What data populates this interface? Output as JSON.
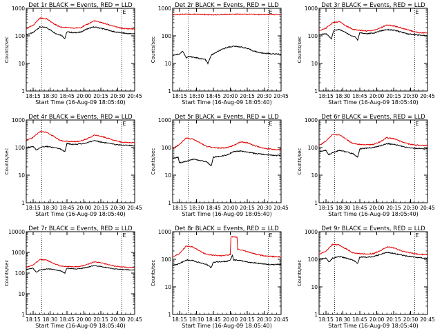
{
  "colors": {
    "events": "#000000",
    "lld": "#e00000",
    "axis": "#000000"
  },
  "chart_data": [
    {
      "type": "line",
      "title": "Det 1r BLACK = Events, RED = LLD",
      "xlabel": "Start Time (16-Aug-09 18:05:40)",
      "ylabel": "Counts/sec",
      "x_ticks": [
        "18:15",
        "18:30",
        "18:45",
        "20:00",
        "20:15",
        "20:30",
        "20:45"
      ],
      "y_ticks": [
        "1",
        "10",
        "100",
        "1000"
      ],
      "ylim": [
        1,
        1000
      ],
      "y_scale": "log",
      "x_range_minutes": [
        0,
        160
      ],
      "vlines": [
        23,
        141
      ],
      "marker": "E",
      "series": [
        {
          "color": "black",
          "x": [
            0,
            10,
            20,
            30,
            38,
            44,
            52,
            57,
            60,
            70,
            80,
            90,
            100,
            110,
            120,
            130,
            140,
            150,
            160
          ],
          "y": [
            110,
            130,
            210,
            200,
            150,
            120,
            105,
            80,
            140,
            130,
            135,
            180,
            210,
            190,
            165,
            140,
            130,
            120,
            120
          ]
        },
        {
          "color": "red",
          "x": [
            0,
            10,
            20,
            30,
            40,
            50,
            60,
            70,
            80,
            90,
            100,
            110,
            120,
            130,
            140,
            150,
            160
          ],
          "y": [
            180,
            240,
            440,
            420,
            280,
            210,
            200,
            190,
            200,
            260,
            350,
            310,
            260,
            220,
            190,
            180,
            180
          ]
        }
      ]
    },
    {
      "type": "line",
      "title": "Det 2r BLACK = Events, RED = LLD",
      "xlabel": "Start Time (16-Aug-09 18:05:40)",
      "ylabel": "Counts/sec",
      "x_ticks": [
        "18:15",
        "18:30",
        "18:45",
        "20:00",
        "20:15",
        "20:30",
        "20:45"
      ],
      "y_ticks": [
        "1",
        "10",
        "100",
        "1000"
      ],
      "ylim": [
        1,
        1000
      ],
      "y_scale": "log",
      "x_range_minutes": [
        0,
        160
      ],
      "vlines": [
        23,
        141
      ],
      "marker": "E",
      "series": [
        {
          "color": "black",
          "x": [
            0,
            10,
            15,
            20,
            25,
            30,
            40,
            48,
            52,
            57,
            60,
            70,
            80,
            90,
            100,
            110,
            120,
            130,
            140,
            150,
            160
          ],
          "y": [
            20,
            22,
            28,
            16,
            18,
            17,
            15,
            14,
            10,
            20,
            22,
            30,
            38,
            42,
            40,
            35,
            28,
            24,
            23,
            22,
            22
          ]
        },
        {
          "color": "red",
          "x": [
            0,
            20,
            40,
            60,
            80,
            100,
            120,
            140,
            160
          ],
          "y": [
            580,
            620,
            600,
            580,
            600,
            620,
            600,
            590,
            590
          ]
        }
      ]
    },
    {
      "type": "line",
      "title": "Det 3r BLACK = Events, RED = LLD",
      "xlabel": "Start Time (16-Aug-09 18:05:40)",
      "ylabel": "Counts/sec",
      "x_ticks": [
        "18:15",
        "18:30",
        "18:45",
        "20:00",
        "20:15",
        "20:30",
        "20:45"
      ],
      "y_ticks": [
        "1",
        "10",
        "100",
        "1000"
      ],
      "ylim": [
        1,
        1000
      ],
      "y_scale": "log",
      "x_range_minutes": [
        0,
        160
      ],
      "vlines": [
        23,
        141
      ],
      "marker": "E",
      "series": [
        {
          "color": "black",
          "x": [
            0,
            10,
            18,
            22,
            30,
            40,
            47,
            53,
            57,
            60,
            70,
            80,
            90,
            100,
            110,
            120,
            130,
            140,
            150,
            160
          ],
          "y": [
            110,
            120,
            80,
            160,
            170,
            130,
            100,
            95,
            70,
            130,
            120,
            125,
            150,
            170,
            160,
            140,
            120,
            110,
            105,
            100
          ]
        },
        {
          "color": "red",
          "x": [
            0,
            10,
            20,
            30,
            40,
            50,
            60,
            70,
            80,
            90,
            100,
            110,
            120,
            130,
            140,
            150,
            160
          ],
          "y": [
            150,
            190,
            300,
            330,
            230,
            170,
            160,
            150,
            160,
            190,
            250,
            230,
            200,
            170,
            140,
            130,
            125
          ]
        }
      ]
    },
    {
      "type": "line",
      "title": "Det 4r BLACK = Events, RED = LLD",
      "xlabel": "Start Time (16-Aug-09 18:05:40)",
      "ylabel": "Counts/sec",
      "x_ticks": [
        "18:15",
        "18:30",
        "18:45",
        "20:00",
        "20:15",
        "20:30",
        "20:45"
      ],
      "y_ticks": [
        "1",
        "10",
        "100",
        "1000"
      ],
      "ylim": [
        1,
        1000
      ],
      "y_scale": "log",
      "x_range_minutes": [
        0,
        160
      ],
      "vlines": [
        23,
        141
      ],
      "marker": "E",
      "series": [
        {
          "color": "black",
          "x": [
            0,
            10,
            15,
            20,
            30,
            40,
            50,
            57,
            60,
            70,
            80,
            90,
            100,
            110,
            120,
            130,
            140,
            150,
            160
          ],
          "y": [
            100,
            110,
            80,
            100,
            110,
            100,
            90,
            70,
            140,
            130,
            135,
            150,
            180,
            160,
            145,
            130,
            125,
            120,
            115
          ]
        },
        {
          "color": "red",
          "x": [
            0,
            10,
            20,
            30,
            40,
            50,
            60,
            70,
            80,
            90,
            100,
            110,
            120,
            130,
            140,
            150,
            160
          ],
          "y": [
            180,
            230,
            380,
            360,
            260,
            180,
            170,
            165,
            170,
            210,
            280,
            260,
            220,
            180,
            160,
            150,
            150
          ]
        }
      ]
    },
    {
      "type": "line",
      "title": "Det 5r BLACK = Events, RED = LLD",
      "xlabel": "Start Time (16-Aug-09 18:05:40)",
      "ylabel": "Counts/sec",
      "x_ticks": [
        "18:15",
        "18:30",
        "18:45",
        "20:00",
        "20:15",
        "20:30",
        "20:45"
      ],
      "y_ticks": [
        "1",
        "10",
        "100",
        "1000"
      ],
      "ylim": [
        1,
        1000
      ],
      "y_scale": "log",
      "x_range_minutes": [
        0,
        160
      ],
      "vlines": [
        23,
        141
      ],
      "marker": "E",
      "series": [
        {
          "color": "black",
          "x": [
            0,
            8,
            10,
            20,
            30,
            40,
            50,
            57,
            60,
            70,
            80,
            90,
            100,
            110,
            120,
            130,
            140,
            150,
            160
          ],
          "y": [
            40,
            45,
            28,
            32,
            38,
            34,
            30,
            22,
            45,
            48,
            55,
            70,
            75,
            68,
            62,
            58,
            55,
            52,
            52
          ]
        },
        {
          "color": "red",
          "x": [
            0,
            10,
            20,
            30,
            40,
            50,
            60,
            70,
            80,
            90,
            100,
            110,
            120,
            130,
            140,
            150,
            160
          ],
          "y": [
            90,
            130,
            220,
            200,
            150,
            110,
            100,
            95,
            100,
            120,
            160,
            150,
            120,
            100,
            90,
            85,
            85
          ]
        }
      ]
    },
    {
      "type": "line",
      "title": "Det 6r BLACK = Events, RED = LLD",
      "xlabel": "Start Time (16-Aug-09 18:05:40)",
      "ylabel": "Counts/sec",
      "x_ticks": [
        "18:15",
        "18:30",
        "18:45",
        "20:00",
        "20:15",
        "20:30",
        "20:45"
      ],
      "y_ticks": [
        "1",
        "10",
        "100",
        "1000"
      ],
      "ylim": [
        1,
        1000
      ],
      "y_scale": "log",
      "x_range_minutes": [
        0,
        160
      ],
      "vlines": [
        23,
        141
      ],
      "marker": "E",
      "series": [
        {
          "color": "black",
          "x": [
            0,
            10,
            14,
            20,
            30,
            40,
            50,
            57,
            60,
            70,
            80,
            90,
            100,
            110,
            120,
            130,
            140,
            150,
            160
          ],
          "y": [
            70,
            80,
            55,
            65,
            80,
            70,
            60,
            45,
            90,
            95,
            100,
            115,
            140,
            130,
            115,
            100,
            95,
            90,
            90
          ]
        },
        {
          "color": "red",
          "x": [
            0,
            10,
            20,
            30,
            40,
            50,
            60,
            70,
            80,
            90,
            100,
            110,
            120,
            130,
            140,
            150,
            160
          ],
          "y": [
            120,
            170,
            300,
            290,
            200,
            140,
            130,
            125,
            130,
            160,
            230,
            210,
            170,
            140,
            125,
            120,
            120
          ]
        }
      ]
    },
    {
      "type": "line",
      "title": "Det 7r BLACK = Events, RED = LLD",
      "xlabel": "Start Time (16-Aug-09 18:05:40)",
      "ylabel": "Counts/sec",
      "x_ticks": [
        "18:15",
        "18:30",
        "18:45",
        "20:00",
        "20:15",
        "20:30",
        "20:45"
      ],
      "y_ticks": [
        "1",
        "10",
        "100",
        "1000",
        "10000"
      ],
      "ylim": [
        1,
        10000
      ],
      "y_scale": "log",
      "x_range_minutes": [
        0,
        160
      ],
      "vlines": [
        23,
        141
      ],
      "marker": "E",
      "series": [
        {
          "color": "black",
          "x": [
            0,
            10,
            15,
            20,
            30,
            40,
            50,
            57,
            60,
            70,
            80,
            90,
            100,
            110,
            120,
            130,
            140,
            150,
            160
          ],
          "y": [
            150,
            170,
            110,
            140,
            160,
            150,
            130,
            100,
            170,
            160,
            165,
            190,
            230,
            210,
            180,
            160,
            150,
            145,
            140
          ]
        },
        {
          "color": "red",
          "x": [
            0,
            10,
            20,
            30,
            40,
            50,
            60,
            70,
            80,
            90,
            100,
            110,
            120,
            130,
            140,
            150,
            160
          ],
          "y": [
            190,
            250,
            450,
            430,
            300,
            220,
            210,
            200,
            210,
            260,
            350,
            320,
            260,
            220,
            200,
            190,
            190
          ]
        }
      ]
    },
    {
      "type": "line",
      "title": "Det 8r BLACK = Events, RED = LLD",
      "xlabel": "Start Time (16-Aug-09 18:05:40)",
      "ylabel": "Counts/sec",
      "x_ticks": [
        "18:15",
        "18:30",
        "18:45",
        "20:00",
        "20:15",
        "20:30",
        "20:45"
      ],
      "y_ticks": [
        "1",
        "10",
        "100",
        "1000"
      ],
      "ylim": [
        1,
        1000
      ],
      "y_scale": "log",
      "x_range_minutes": [
        0,
        160
      ],
      "vlines": [
        23,
        141
      ],
      "marker": "E",
      "series": [
        {
          "color": "black",
          "x": [
            0,
            10,
            20,
            30,
            40,
            50,
            57,
            60,
            70,
            80,
            85,
            88,
            90,
            100,
            110,
            120,
            130,
            140,
            150,
            160
          ],
          "y": [
            60,
            70,
            95,
            90,
            75,
            65,
            50,
            80,
            80,
            85,
            95,
            140,
            95,
            90,
            80,
            75,
            70,
            65,
            65,
            65
          ]
        },
        {
          "color": "red",
          "x": [
            0,
            10,
            20,
            30,
            40,
            50,
            60,
            70,
            80,
            85,
            86,
            95,
            96,
            100,
            110,
            120,
            130,
            140,
            150,
            160
          ],
          "y": [
            120,
            160,
            300,
            280,
            200,
            150,
            140,
            135,
            140,
            150,
            650,
            650,
            230,
            220,
            190,
            160,
            140,
            130,
            125,
            120
          ]
        }
      ]
    },
    {
      "type": "line",
      "title": "Det 9r BLACK = Events, RED = LLD",
      "xlabel": "Start Time (16-Aug-09 18:05:40)",
      "ylabel": "Counts/sec",
      "x_ticks": [
        "18:15",
        "18:30",
        "18:45",
        "20:00",
        "20:15",
        "20:30",
        "20:45"
      ],
      "y_ticks": [
        "1",
        "10",
        "100",
        "1000"
      ],
      "ylim": [
        1,
        1000
      ],
      "y_scale": "log",
      "x_range_minutes": [
        0,
        160
      ],
      "vlines": [
        23,
        141
      ],
      "marker": "E",
      "series": [
        {
          "color": "black",
          "x": [
            0,
            10,
            15,
            20,
            30,
            40,
            50,
            57,
            60,
            70,
            80,
            90,
            100,
            110,
            120,
            130,
            140,
            150,
            160
          ],
          "y": [
            100,
            110,
            80,
            110,
            125,
            110,
            95,
            70,
            120,
            120,
            125,
            150,
            180,
            165,
            145,
            130,
            120,
            115,
            110
          ]
        },
        {
          "color": "red",
          "x": [
            0,
            10,
            20,
            30,
            40,
            50,
            60,
            70,
            80,
            90,
            100,
            110,
            120,
            130,
            140,
            150,
            160
          ],
          "y": [
            150,
            200,
            350,
            330,
            240,
            170,
            160,
            155,
            160,
            200,
            280,
            260,
            210,
            180,
            160,
            150,
            150
          ]
        }
      ]
    }
  ]
}
